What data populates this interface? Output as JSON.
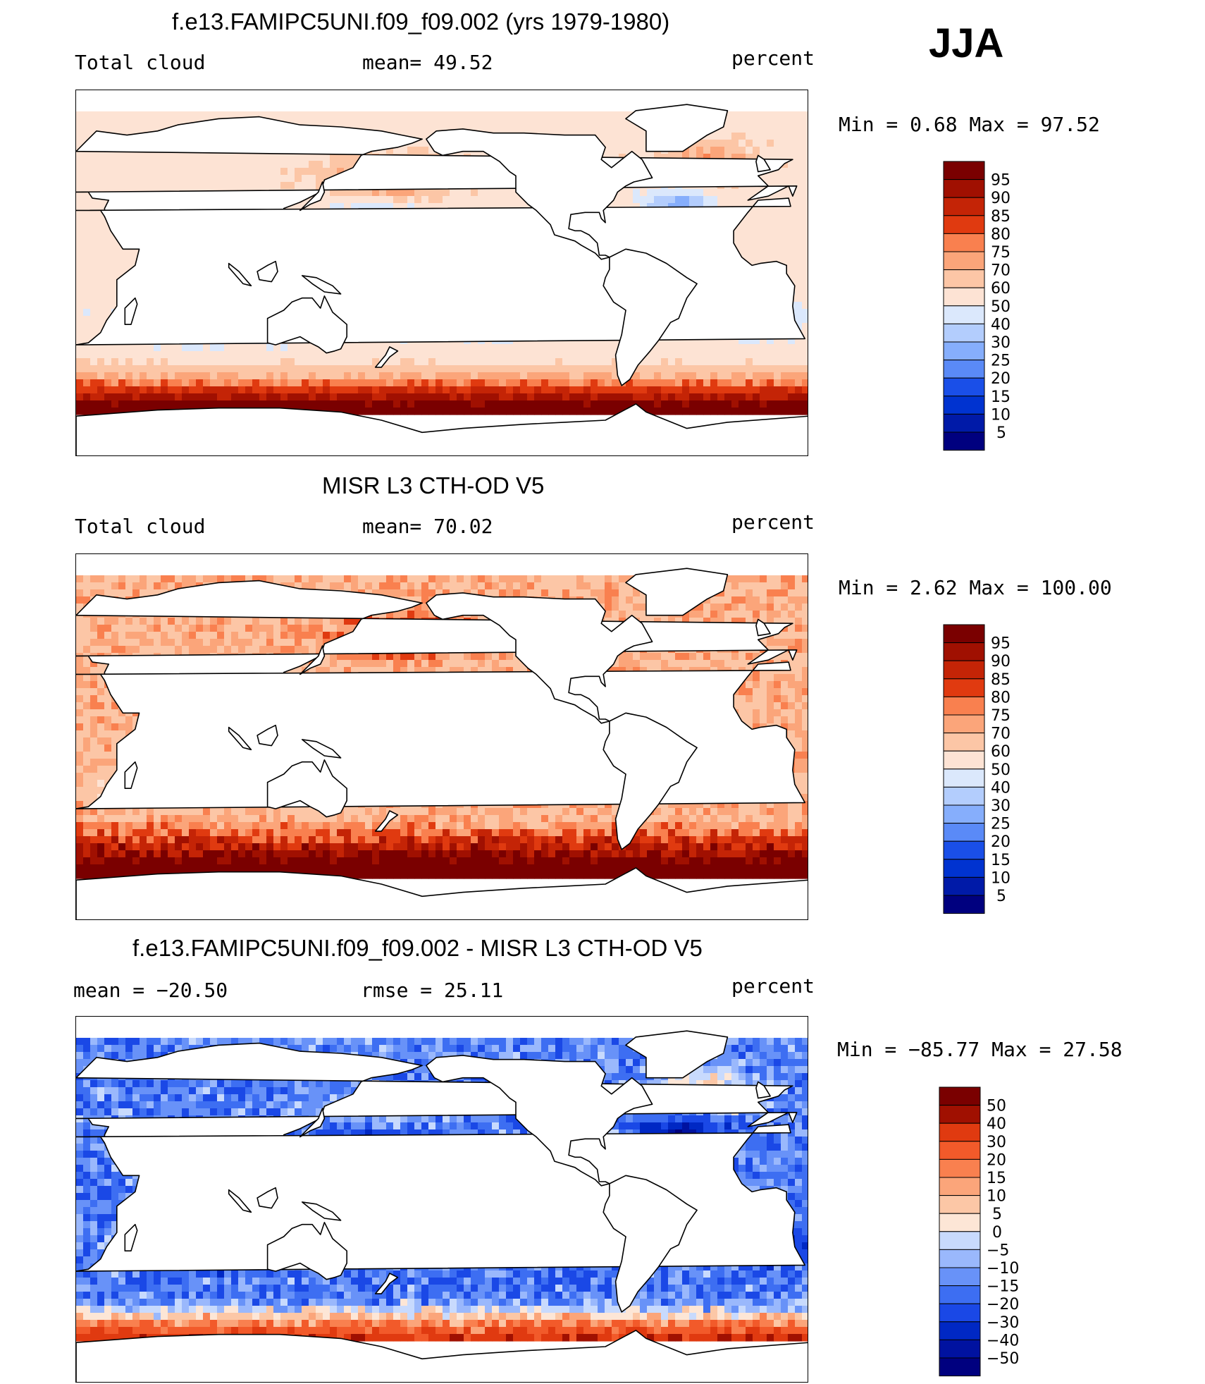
{
  "season": "JJA",
  "units": "percent",
  "colors": {
    "abs": [
      "#00007f",
      "#001aa8",
      "#0033d0",
      "#1a4fe8",
      "#3b6ff2",
      "#5a8af7",
      "#86aefc",
      "#b3cdfd",
      "#dbe8fc",
      "#fde3d4",
      "#fcc6a6",
      "#fba57a",
      "#f9804f",
      "#f25a2a",
      "#e03a10",
      "#c42406",
      "#a01001",
      "#7a0000"
    ],
    "diff": [
      "#00007f",
      "#0012a0",
      "#0028c4",
      "#1a48e6",
      "#3d6ef2",
      "#6892f8",
      "#9ab8fc",
      "#c8dafd",
      "#e8f0fd",
      "#fde6d6",
      "#fcc7a6",
      "#fba57a",
      "#f9804f",
      "#f25a2a",
      "#e03a10",
      "#a01001",
      "#7a0000"
    ]
  },
  "panels": [
    {
      "title": "f.e13.FAMIPC5UNI.f09_f09.002 (yrs 1979-1980)",
      "left": "Total cloud",
      "center": "mean=   49.52",
      "right": "percent",
      "minmax": "Min  =     0.68  Max  =    97.52",
      "levels": [
        "95",
        "90",
        "85",
        "80",
        "75",
        "70",
        "60",
        "50",
        "40",
        "30",
        "25",
        "20",
        "15",
        "10",
        "5"
      ]
    },
    {
      "title": "MISR L3 CTH-OD V5",
      "left": "Total cloud",
      "center": "mean=   70.02",
      "right": "percent",
      "minmax": "Min  =     2.62  Max  =  100.00",
      "levels": [
        "95",
        "90",
        "85",
        "80",
        "75",
        "70",
        "60",
        "50",
        "40",
        "30",
        "25",
        "20",
        "15",
        "10",
        "5"
      ]
    },
    {
      "title": "f.e13.FAMIPC5UNI.f09_f09.002 - MISR L3 CTH-OD V5",
      "left": "mean  =  −20.50",
      "center": "rmse  =    25.11",
      "right": "percent",
      "minmax": "Min  =  −85.77  Max  =    27.58",
      "levels": [
        "50",
        "40",
        "30",
        "20",
        "15",
        "10",
        "5",
        "0",
        "−5",
        "−10",
        "−15",
        "−20",
        "−30",
        "−40",
        "−50"
      ]
    }
  ]
}
